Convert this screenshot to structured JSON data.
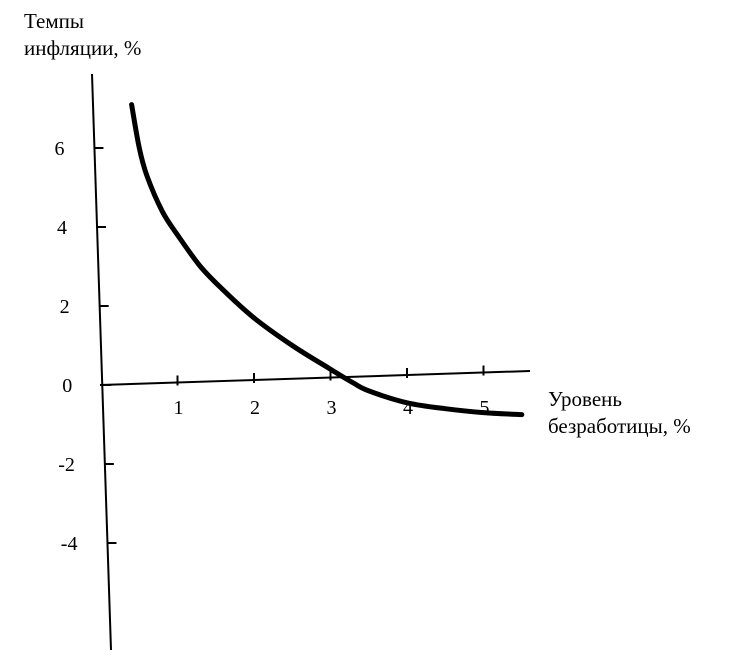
{
  "chart_data": {
    "type": "line",
    "title": "",
    "ylabel_lines": [
      "Темпы",
      "инфляции, %"
    ],
    "xlabel_lines": [
      "Уровень",
      "безработицы, %"
    ],
    "x_ticks": [
      1,
      2,
      3,
      4,
      5
    ],
    "x_tick_labels": [
      "1",
      "2",
      "3",
      "4",
      "5"
    ],
    "y_ticks": [
      6,
      4,
      2,
      0,
      -2,
      -4
    ],
    "y_tick_labels": [
      "6",
      "4",
      "2",
      "0",
      "-2",
      "-4"
    ],
    "xlim": [
      0,
      6
    ],
    "ylim": [
      -6.5,
      7.5
    ],
    "grid": false,
    "legend": "none",
    "series": [
      {
        "x": [
          0.4,
          0.5,
          0.6,
          0.8,
          1.0,
          1.3,
          1.6,
          2.0,
          2.5,
          3.0,
          3.3,
          3.5,
          4.0,
          4.5,
          5.0,
          5.5
        ],
        "y": [
          7.1,
          6.0,
          5.3,
          4.4,
          3.8,
          3.0,
          2.4,
          1.7,
          1.0,
          0.4,
          0.05,
          -0.15,
          -0.45,
          -0.6,
          -0.7,
          -0.75
        ]
      }
    ]
  }
}
